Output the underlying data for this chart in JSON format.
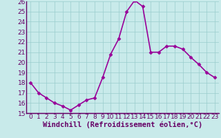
{
  "x": [
    0,
    1,
    2,
    3,
    4,
    5,
    6,
    7,
    8,
    9,
    10,
    11,
    12,
    13,
    14,
    15,
    16,
    17,
    18,
    19,
    20,
    21,
    22,
    23
  ],
  "y": [
    18.0,
    17.0,
    16.5,
    16.0,
    15.7,
    15.3,
    15.8,
    16.3,
    16.5,
    18.5,
    20.8,
    22.3,
    25.0,
    26.1,
    25.5,
    21.0,
    21.0,
    21.6,
    21.6,
    21.3,
    20.5,
    19.8,
    19.0,
    18.5
  ],
  "line_color": "#990099",
  "marker": "D",
  "marker_size": 2.5,
  "bg_color": "#c8eaea",
  "grid_color": "#99cccc",
  "xlabel": "Windchill (Refroidissement éolien,°C)",
  "xlabel_fontsize": 7.5,
  "ylim": [
    15,
    26
  ],
  "xlim": [
    -0.5,
    23.5
  ],
  "yticks": [
    15,
    16,
    17,
    18,
    19,
    20,
    21,
    22,
    23,
    24,
    25,
    26
  ],
  "xticks": [
    0,
    1,
    2,
    3,
    4,
    5,
    6,
    7,
    8,
    9,
    10,
    11,
    12,
    13,
    14,
    15,
    16,
    17,
    18,
    19,
    20,
    21,
    22,
    23
  ],
  "tick_fontsize": 6.5,
  "line_width": 1.2,
  "spine_color": "#660066",
  "tick_color": "#660066"
}
